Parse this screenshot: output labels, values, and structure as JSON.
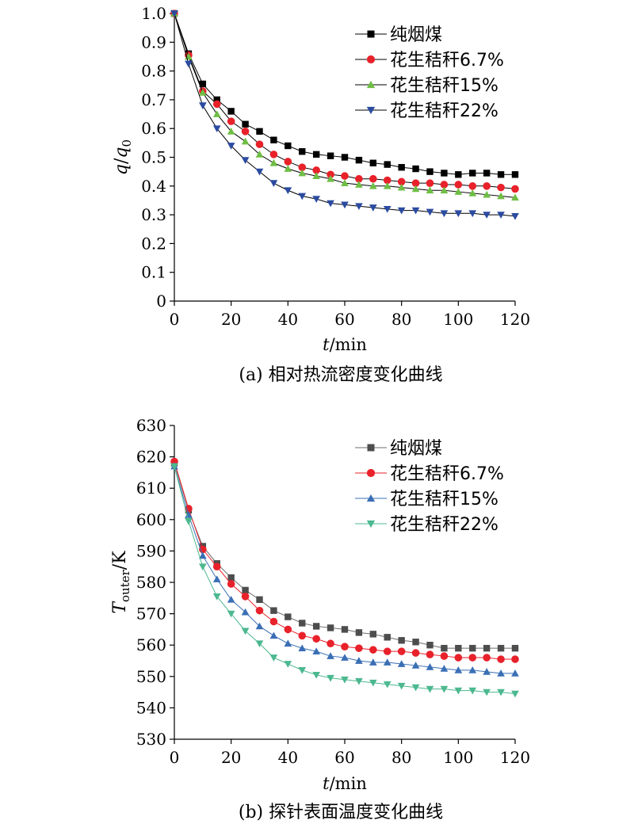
{
  "chart_data": [
    {
      "type": "line",
      "caption": "(a) 相对热流密度变化曲线",
      "xlabel_var": "t",
      "xlabel_unit": "/min",
      "ylabel_parts": [
        "q",
        "/",
        "q",
        "0"
      ],
      "xlim": [
        0,
        120
      ],
      "ylim": [
        0,
        1.0
      ],
      "x_ticks": [
        0,
        20,
        40,
        60,
        80,
        100,
        120
      ],
      "x_tick_labels": [
        "0",
        "20",
        "40",
        "60",
        "80",
        "100",
        "120"
      ],
      "y_ticks": [
        0,
        0.1,
        0.2,
        0.3,
        0.4,
        0.5,
        0.6,
        0.7,
        0.8,
        0.9,
        1.0
      ],
      "y_tick_labels": [
        "0",
        "0.1",
        "0.2",
        "0.3",
        "0.4",
        "0.5",
        "0.6",
        "0.7",
        "0.8",
        "0.9",
        "1.0"
      ],
      "legend_position": "top-right",
      "grid": false,
      "x": [
        0,
        5,
        10,
        15,
        20,
        25,
        30,
        35,
        40,
        45,
        50,
        55,
        60,
        65,
        70,
        75,
        80,
        85,
        90,
        95,
        100,
        105,
        110,
        115,
        120
      ],
      "series": [
        {
          "name": "纯烟煤",
          "marker": "square",
          "color": "#000000",
          "line_color": "#000000",
          "values": [
            1.0,
            0.86,
            0.755,
            0.7,
            0.66,
            0.615,
            0.59,
            0.56,
            0.54,
            0.52,
            0.51,
            0.505,
            0.5,
            0.49,
            0.48,
            0.475,
            0.465,
            0.46,
            0.45,
            0.445,
            0.44,
            0.445,
            0.445,
            0.44,
            0.44
          ]
        },
        {
          "name": "花生秸秆6.7%",
          "marker": "circle",
          "color": "#e8212a",
          "line_color": "#000000",
          "values": [
            1.0,
            0.855,
            0.73,
            0.685,
            0.625,
            0.59,
            0.545,
            0.51,
            0.485,
            0.465,
            0.455,
            0.44,
            0.435,
            0.425,
            0.425,
            0.42,
            0.415,
            0.41,
            0.41,
            0.405,
            0.405,
            0.4,
            0.4,
            0.395,
            0.39
          ]
        },
        {
          "name": "花生秸秆15%",
          "marker": "triangle-up",
          "color": "#6fbe44",
          "line_color": "#000000",
          "values": [
            1.0,
            0.85,
            0.725,
            0.65,
            0.59,
            0.555,
            0.51,
            0.48,
            0.46,
            0.445,
            0.435,
            0.425,
            0.41,
            0.405,
            0.4,
            0.4,
            0.395,
            0.39,
            0.385,
            0.385,
            0.38,
            0.375,
            0.37,
            0.365,
            0.36
          ]
        },
        {
          "name": "花生秸秆22%",
          "marker": "triangle-down",
          "color": "#2b4ba1",
          "line_color": "#000000",
          "values": [
            1.0,
            0.825,
            0.68,
            0.6,
            0.54,
            0.49,
            0.45,
            0.41,
            0.385,
            0.365,
            0.355,
            0.34,
            0.335,
            0.33,
            0.325,
            0.32,
            0.315,
            0.315,
            0.31,
            0.305,
            0.305,
            0.305,
            0.3,
            0.3,
            0.295
          ]
        }
      ]
    },
    {
      "type": "line",
      "caption": "(b) 探针表面温度变化曲线",
      "xlabel_var": "t",
      "xlabel_unit": "/min",
      "ylabel_parts": [
        "T",
        "outer",
        "/K"
      ],
      "xlim": [
        0,
        120
      ],
      "ylim": [
        530,
        630
      ],
      "x_ticks": [
        0,
        20,
        40,
        60,
        80,
        100,
        120
      ],
      "x_tick_labels": [
        "0",
        "20",
        "40",
        "60",
        "80",
        "100",
        "120"
      ],
      "y_ticks": [
        530,
        540,
        550,
        560,
        570,
        580,
        590,
        600,
        610,
        620,
        630
      ],
      "y_tick_labels": [
        "530",
        "540",
        "550",
        "560",
        "570",
        "580",
        "590",
        "600",
        "610",
        "620",
        "630"
      ],
      "legend_position": "top-right",
      "grid": false,
      "x": [
        0,
        5,
        10,
        15,
        20,
        25,
        30,
        35,
        40,
        45,
        50,
        55,
        60,
        65,
        70,
        75,
        80,
        85,
        90,
        95,
        100,
        105,
        110,
        115,
        120
      ],
      "series": [
        {
          "name": "纯烟煤",
          "marker": "square",
          "color": "#4d4d4d",
          "line_color": "#6d6d6d",
          "values": [
            618,
            603,
            591.5,
            586,
            581.5,
            577.5,
            574.5,
            571,
            569,
            567,
            566,
            565.5,
            565,
            564,
            563.5,
            562.5,
            561.5,
            561,
            560,
            559,
            559,
            559,
            559,
            559,
            559
          ]
        },
        {
          "name": "花生秸秆6.7%",
          "marker": "circle",
          "color": "#e8212a",
          "line_color": "#e8212a",
          "values": [
            618.5,
            603.5,
            590.5,
            585,
            579.5,
            575.5,
            571,
            567.5,
            565,
            563,
            562,
            560.5,
            559.5,
            559,
            558.5,
            558,
            558,
            557.5,
            557,
            556.5,
            556,
            556,
            556,
            555.5,
            555.5
          ]
        },
        {
          "name": "花生秸秆15%",
          "marker": "triangle-up",
          "color": "#3a6fb5",
          "line_color": "#3a6fb5",
          "values": [
            617,
            601.5,
            588.5,
            581,
            574.5,
            570.5,
            566,
            563,
            560.5,
            559,
            558,
            556.5,
            556,
            555,
            554.5,
            554.5,
            554,
            553.5,
            553,
            552.5,
            552,
            552,
            551.5,
            551,
            551
          ]
        },
        {
          "name": "花生秸秆22%",
          "marker": "triangle-down",
          "color": "#4cb88f",
          "line_color": "#4cb88f",
          "values": [
            617,
            599.5,
            585,
            575.5,
            570,
            564.5,
            560.5,
            556,
            554,
            552,
            550.5,
            549.5,
            549,
            548.5,
            548,
            547.5,
            547,
            546.5,
            546,
            546,
            545.5,
            545.5,
            545,
            545,
            544.5
          ]
        }
      ]
    }
  ]
}
